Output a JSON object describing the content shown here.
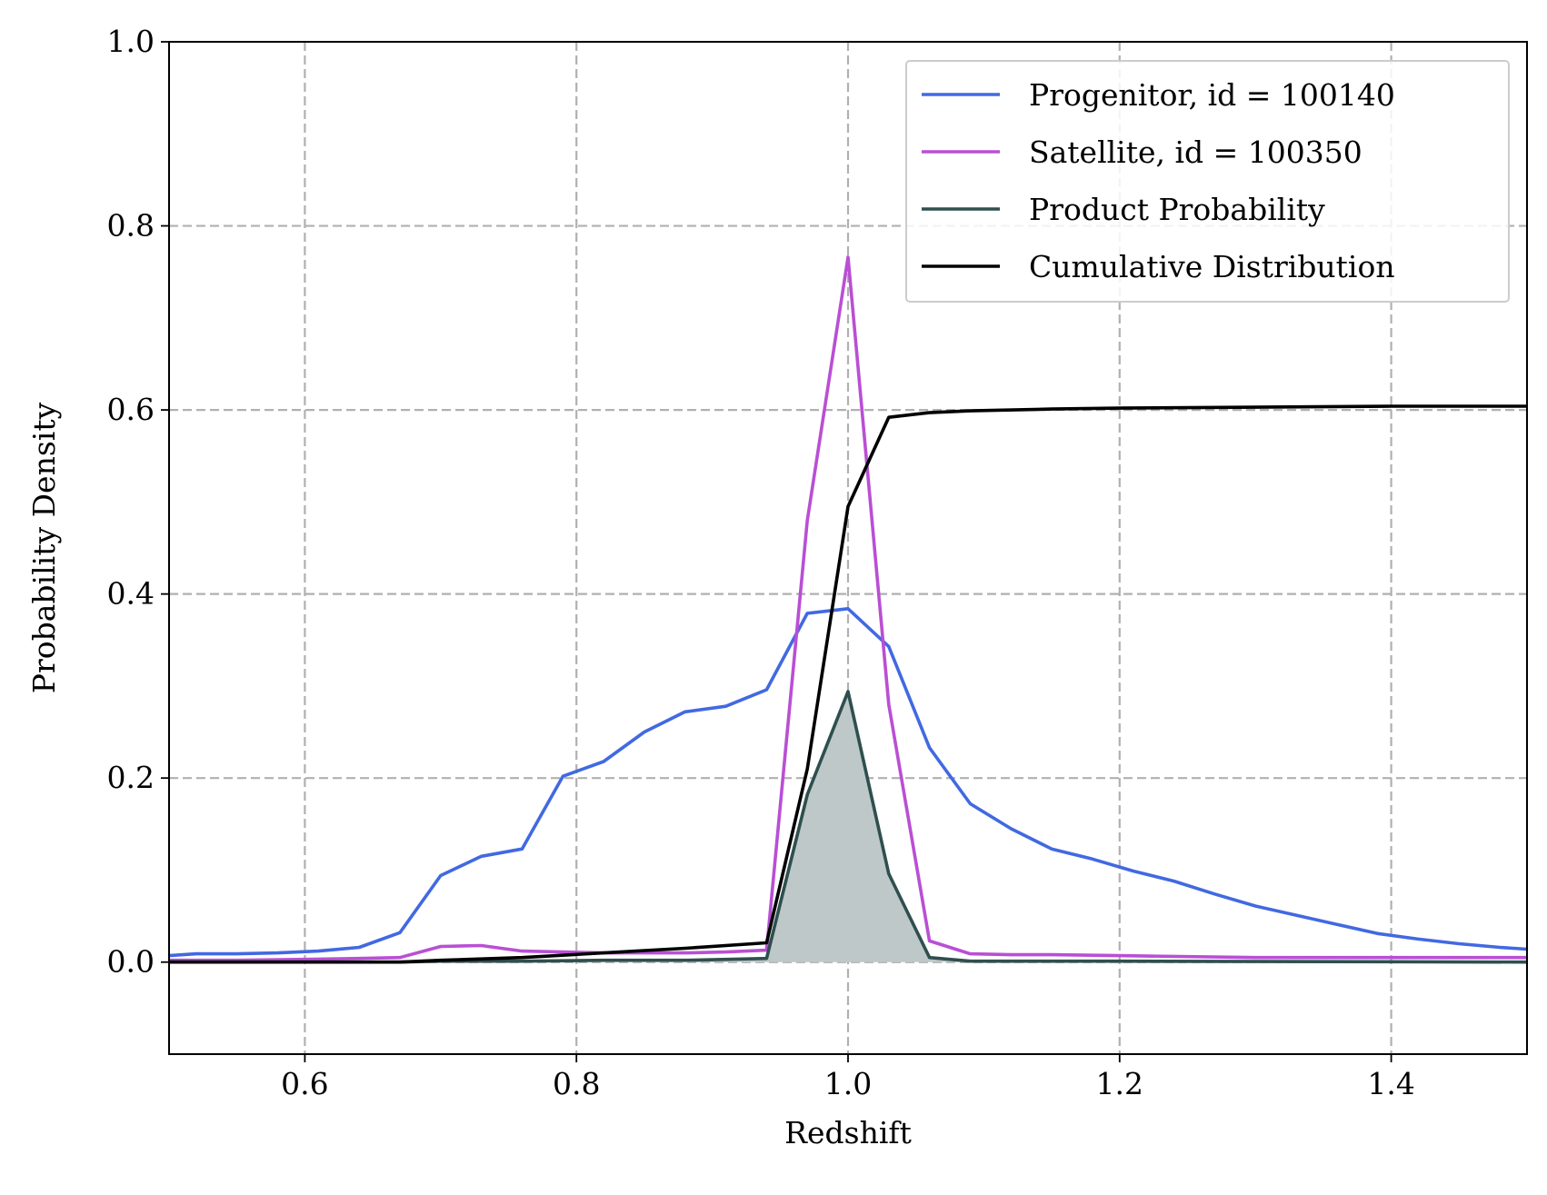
{
  "chart_data": {
    "type": "line",
    "title": "",
    "xlabel": "Redshift",
    "ylabel": "Probability Density",
    "xlim": [
      0.5,
      1.5
    ],
    "ylim": [
      -0.1,
      1.0
    ],
    "xticks": [
      0.6,
      0.8,
      1.0,
      1.2,
      1.4
    ],
    "xtick_labels": [
      "0.6",
      "0.8",
      "1.0",
      "1.2",
      "1.4"
    ],
    "yticks": [
      0.0,
      0.2,
      0.4,
      0.6,
      0.8,
      1.0
    ],
    "ytick_labels": [
      "0.0",
      "0.2",
      "0.4",
      "0.6",
      "0.8",
      "1.0"
    ],
    "grid": true,
    "legend_position": "top-right",
    "series": [
      {
        "name": "Progenitor, id = 100140",
        "color": "#4169e1",
        "x": [
          0.5,
          0.52,
          0.55,
          0.58,
          0.61,
          0.64,
          0.67,
          0.7,
          0.73,
          0.76,
          0.79,
          0.82,
          0.85,
          0.88,
          0.91,
          0.94,
          0.97,
          1.0,
          1.03,
          1.06,
          1.09,
          1.12,
          1.15,
          1.18,
          1.21,
          1.24,
          1.27,
          1.3,
          1.33,
          1.36,
          1.39,
          1.42,
          1.45,
          1.48,
          1.5
        ],
        "y": [
          0.007,
          0.009,
          0.009,
          0.01,
          0.012,
          0.016,
          0.032,
          0.094,
          0.115,
          0.123,
          0.202,
          0.218,
          0.25,
          0.272,
          0.278,
          0.296,
          0.379,
          0.384,
          0.343,
          0.233,
          0.172,
          0.145,
          0.123,
          0.112,
          0.099,
          0.088,
          0.074,
          0.061,
          0.051,
          0.041,
          0.031,
          0.025,
          0.02,
          0.016,
          0.014
        ]
      },
      {
        "name": "Satellite, id = 100350",
        "color": "#b94fd4",
        "x": [
          0.5,
          0.55,
          0.6,
          0.64,
          0.67,
          0.7,
          0.73,
          0.76,
          0.79,
          0.82,
          0.85,
          0.88,
          0.91,
          0.94,
          0.97,
          1.0,
          1.03,
          1.06,
          1.09,
          1.12,
          1.15,
          1.2,
          1.3,
          1.4,
          1.5
        ],
        "y": [
          0.002,
          0.002,
          0.003,
          0.004,
          0.005,
          0.017,
          0.018,
          0.012,
          0.011,
          0.01,
          0.01,
          0.01,
          0.011,
          0.013,
          0.48,
          0.766,
          0.28,
          0.023,
          0.009,
          0.008,
          0.008,
          0.007,
          0.005,
          0.005,
          0.005
        ]
      },
      {
        "name": "Product Probability",
        "color": "#2f4f4f",
        "fill": "#bec8c8",
        "x": [
          0.5,
          0.67,
          0.7,
          0.76,
          0.82,
          0.88,
          0.94,
          0.97,
          1.0,
          1.03,
          1.06,
          1.09,
          1.2,
          1.5
        ],
        "y": [
          0.0,
          0.0,
          0.001,
          0.001,
          0.002,
          0.002,
          0.004,
          0.182,
          0.294,
          0.096,
          0.005,
          0.001,
          0.001,
          0.0
        ]
      },
      {
        "name": "Cumulative Distribution",
        "color": "#000000",
        "x": [
          0.5,
          0.67,
          0.7,
          0.76,
          0.82,
          0.88,
          0.94,
          0.97,
          1.0,
          1.03,
          1.06,
          1.09,
          1.15,
          1.2,
          1.3,
          1.4,
          1.5
        ],
        "y": [
          0.0,
          0.0,
          0.002,
          0.005,
          0.01,
          0.015,
          0.021,
          0.21,
          0.495,
          0.592,
          0.597,
          0.599,
          0.601,
          0.602,
          0.603,
          0.604,
          0.604
        ]
      }
    ]
  }
}
